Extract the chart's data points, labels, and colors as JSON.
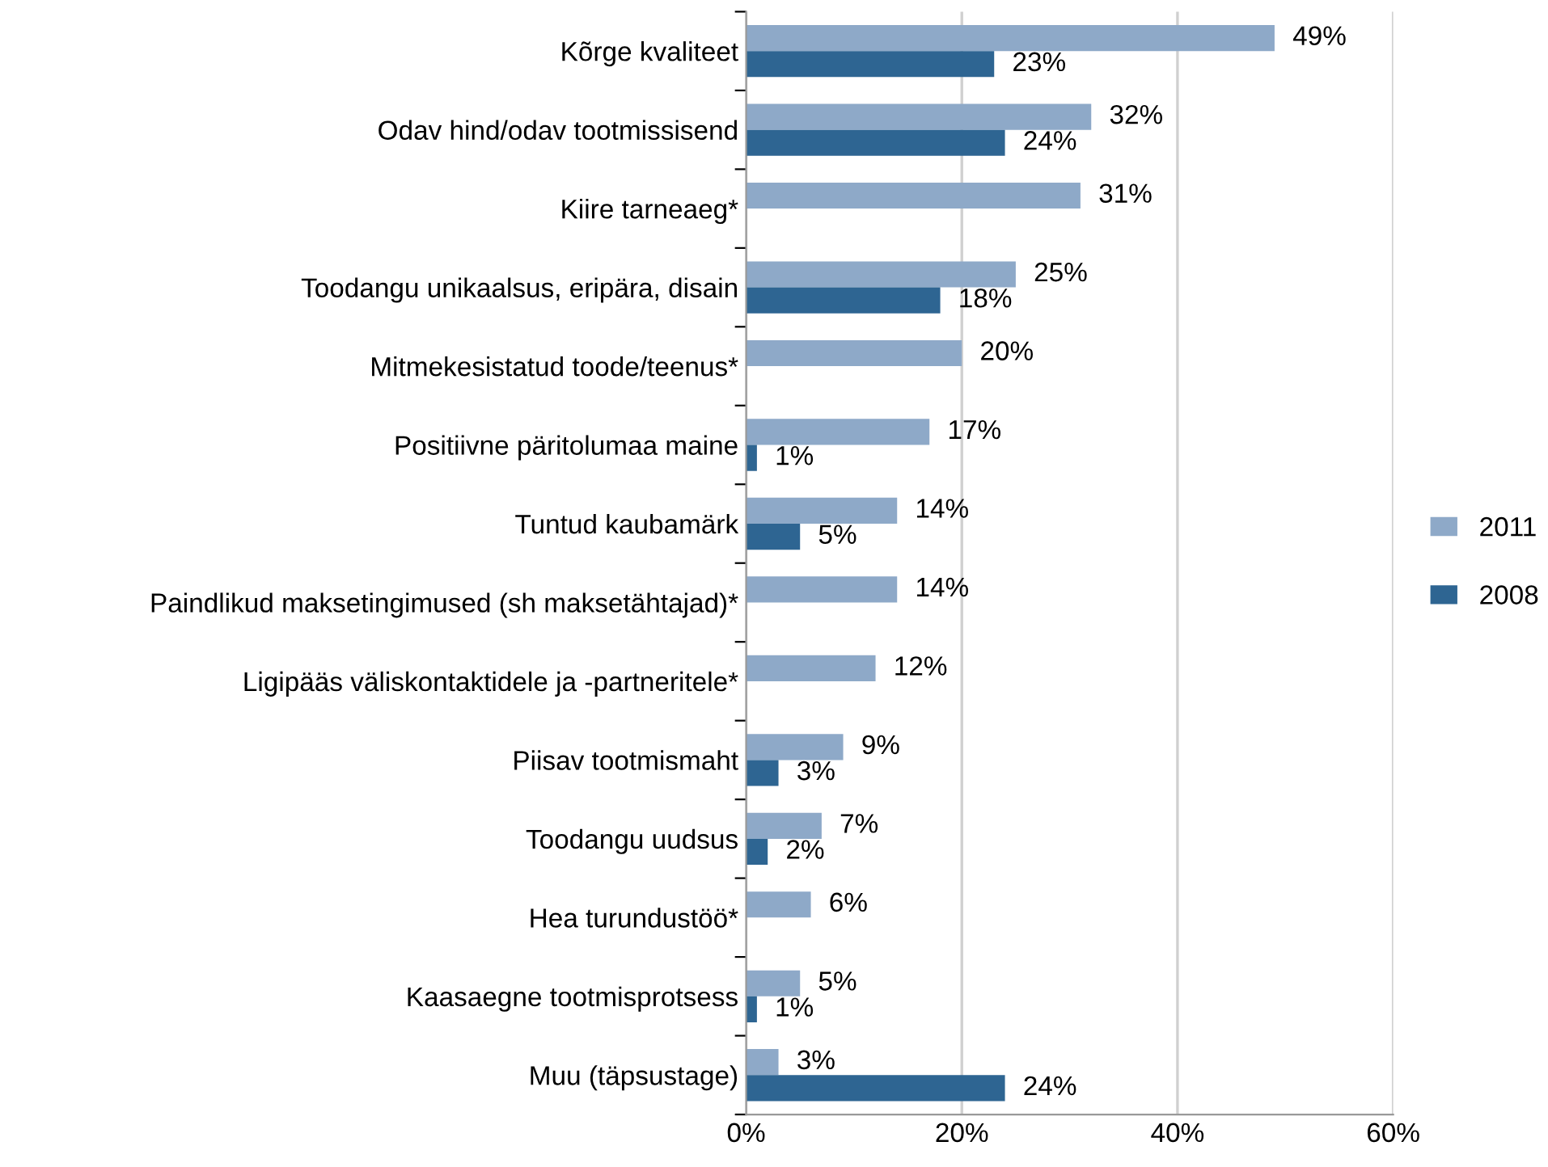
{
  "chart_data": {
    "type": "bar",
    "orientation": "horizontal",
    "categories": [
      "Kõrge kvaliteet",
      "Odav hind/odav tootmissisend",
      "Kiire tarneaeg*",
      "Toodangu unikaalsus, eripära, disain",
      "Mitmekesistatud toode/teenus*",
      "Positiivne päritolumaa maine",
      "Tuntud kaubamärk",
      "Paindlikud maksetingimused (sh maksetähtajad)*",
      "Ligipääs väliskontaktidele ja -partneritele*",
      "Piisav tootmismaht",
      "Toodangu uudsus",
      "Hea turundustöö*",
      "Kaasaegne tootmisprotsess",
      "Muu (täpsustage)"
    ],
    "series": [
      {
        "name": "2011",
        "color": "#8ea9c8",
        "values": [
          49,
          32,
          31,
          25,
          20,
          17,
          14,
          14,
          12,
          9,
          7,
          6,
          5,
          3
        ],
        "value_labels": [
          "49%",
          "32%",
          "31%",
          "25%",
          "20%",
          "17%",
          "14%",
          "14%",
          "12%",
          "9%",
          "7%",
          "6%",
          "5%",
          "3%"
        ]
      },
      {
        "name": "2008",
        "color": "#2e6592",
        "values": [
          23,
          24,
          null,
          18,
          null,
          1,
          5,
          null,
          null,
          3,
          2,
          null,
          1,
          24
        ],
        "value_labels": [
          "23%",
          "24%",
          null,
          "18%",
          null,
          "1%",
          "5%",
          null,
          null,
          "3%",
          "2%",
          null,
          "1%",
          "24%"
        ]
      }
    ],
    "xlim": [
      0,
      60
    ],
    "xticks": [
      {
        "value": 0,
        "label": "0%"
      },
      {
        "value": 20,
        "label": "20%"
      },
      {
        "value": 40,
        "label": "40%"
      },
      {
        "value": 60,
        "label": "60%"
      }
    ],
    "grid": "x",
    "legend": "right"
  }
}
